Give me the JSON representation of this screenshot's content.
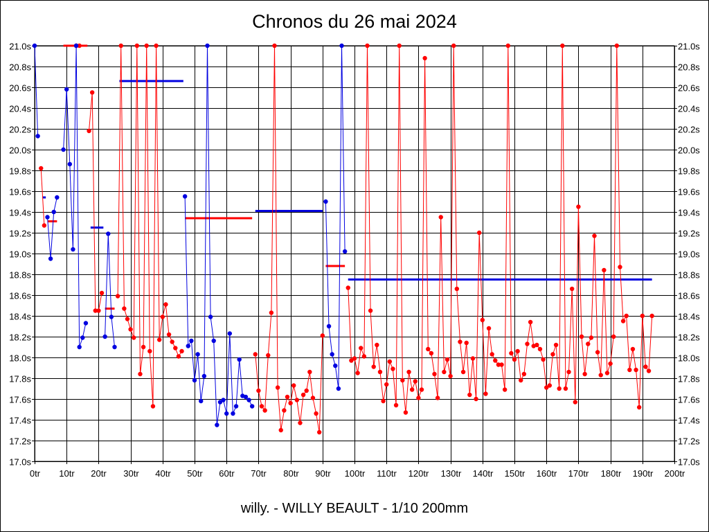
{
  "colors": {
    "series_blue": "#0000e0",
    "series_red": "#ff0000",
    "grid": "#000000"
  },
  "chart_data": {
    "type": "line",
    "title": "Chronos du 26 mai 2024",
    "subtitle": "willy. - WILLY BEAULT - 1/10 200mm",
    "xlabel": "",
    "ylabel": "",
    "xlim": [
      0,
      200
    ],
    "ylim": [
      17.0,
      21.0
    ],
    "x_ticks": [
      0,
      10,
      20,
      30,
      40,
      50,
      60,
      70,
      80,
      90,
      100,
      110,
      120,
      130,
      140,
      150,
      160,
      170,
      180,
      190,
      200
    ],
    "x_tick_labels": [
      "0tr",
      "10tr",
      "20tr",
      "30tr",
      "40tr",
      "50tr",
      "60tr",
      "70tr",
      "80tr",
      "90tr",
      "100tr",
      "110tr",
      "120tr",
      "130tr",
      "140tr",
      "150tr",
      "160tr",
      "170tr",
      "180tr",
      "190tr",
      "200tr"
    ],
    "y_ticks": [
      17.0,
      17.2,
      17.4,
      17.6,
      17.8,
      18.0,
      18.2,
      18.4,
      18.6,
      18.8,
      19.0,
      19.2,
      19.4,
      19.6,
      19.8,
      20.0,
      20.2,
      20.4,
      20.6,
      20.8,
      21.0
    ],
    "y_tick_labels": [
      "17.0s",
      "17.2s",
      "17.4s",
      "17.6s",
      "17.8s",
      "18.0s",
      "18.2s",
      "18.4s",
      "18.6s",
      "18.8s",
      "19.0s",
      "19.2s",
      "19.4s",
      "19.6s",
      "19.8s",
      "20.0s",
      "20.2s",
      "20.4s",
      "20.6s",
      "20.8s",
      "21.0s"
    ],
    "grid": true,
    "series": [
      {
        "name": "s1",
        "color": "blue",
        "x": [
          0,
          1
        ],
        "y": [
          21.0,
          20.13
        ],
        "avg": null
      },
      {
        "name": "s2",
        "color": "red",
        "x": [
          2,
          3
        ],
        "y": [
          19.82,
          19.27
        ],
        "avg": {
          "x0": 2.5,
          "x1": 3.5,
          "y": 19.54,
          "color": "blue"
        }
      },
      {
        "name": "s3",
        "color": "blue",
        "x": [
          4,
          5,
          6,
          7
        ],
        "y": [
          19.35,
          18.95,
          19.4,
          19.54
        ],
        "avg": {
          "x0": 4,
          "x1": 7,
          "y": 19.31,
          "color": "red"
        }
      },
      {
        "name": "s4",
        "color": "blue",
        "x": [
          9,
          10,
          11,
          12,
          13
        ],
        "y": [
          20.0,
          20.58,
          19.86,
          19.04,
          21.0
        ],
        "avg": {
          "x0": 9,
          "x1": 16.5,
          "y": 21.0,
          "color": "red"
        }
      },
      {
        "name": "s5",
        "color": "red",
        "x": [
          13,
          14
        ],
        "y": [
          21.0,
          21.0
        ],
        "avg": null
      },
      {
        "name": "s6",
        "color": "blue",
        "x": [
          13,
          14,
          15,
          16
        ],
        "y": [
          21.0,
          18.1,
          18.19,
          18.33
        ],
        "avg": null
      },
      {
        "name": "s7",
        "color": "red",
        "x": [
          17,
          18,
          19,
          20,
          21
        ],
        "y": [
          20.18,
          20.55,
          18.45,
          18.45,
          18.62
        ],
        "avg": {
          "x0": 17.5,
          "x1": 21.5,
          "y": 19.25,
          "color": "blue"
        }
      },
      {
        "name": "s8",
        "color": "blue",
        "x": [
          22,
          23,
          24,
          25
        ],
        "y": [
          18.2,
          19.19,
          18.39,
          18.1
        ],
        "avg": {
          "x0": 22,
          "x1": 25,
          "y": 18.47,
          "color": "red"
        }
      },
      {
        "name": "s9",
        "color": "red",
        "x": [
          26,
          27,
          28,
          29,
          30,
          31,
          32,
          33,
          34,
          35,
          36,
          37,
          38,
          39,
          40,
          41,
          42,
          43,
          44,
          45,
          46
        ],
        "y": [
          18.59,
          21.0,
          18.47,
          18.37,
          18.27,
          18.19,
          21.0,
          17.84,
          18.1,
          21.0,
          18.06,
          17.53,
          21.0,
          18.17,
          18.39,
          18.51,
          18.22,
          18.15,
          18.09,
          18.01,
          18.06
        ],
        "avg": {
          "x0": 26.5,
          "x1": 46.5,
          "y": 20.66,
          "color": "blue"
        }
      },
      {
        "name": "s10",
        "color": "blue",
        "x": [
          47,
          48,
          49,
          50,
          51,
          52,
          53,
          54,
          55,
          56,
          57,
          58,
          59,
          60,
          61,
          62,
          63,
          64,
          65,
          66,
          67,
          68
        ],
        "y": [
          19.55,
          18.11,
          18.16,
          17.78,
          18.03,
          17.58,
          17.82,
          21.0,
          18.39,
          18.16,
          17.35,
          17.57,
          17.59,
          17.46,
          18.23,
          17.46,
          17.53,
          17.98,
          17.63,
          17.62,
          17.59,
          17.53
        ],
        "avg": {
          "x0": 47,
          "x1": 68,
          "y": 19.34,
          "color": "red"
        }
      },
      {
        "name": "s11",
        "color": "red",
        "x": [
          69,
          70,
          71,
          72,
          73,
          74,
          75,
          76,
          77,
          78,
          79,
          80,
          81,
          82,
          83,
          84,
          85,
          86,
          87,
          88,
          89,
          90
        ],
        "y": [
          18.03,
          17.68,
          17.53,
          17.49,
          18.02,
          18.43,
          21.0,
          17.71,
          17.3,
          17.49,
          17.62,
          17.56,
          17.73,
          17.59,
          17.37,
          17.64,
          17.68,
          17.86,
          17.61,
          17.46,
          17.28,
          18.21
        ],
        "avg": {
          "x0": 69,
          "x1": 90,
          "y": 19.41,
          "color": "blue"
        }
      },
      {
        "name": "s12",
        "color": "blue",
        "x": [
          91,
          92,
          93,
          94,
          95,
          96,
          97
        ],
        "y": [
          19.5,
          18.3,
          18.03,
          17.92,
          17.7,
          21.0,
          19.02
        ],
        "avg": {
          "x0": 91,
          "x1": 97,
          "y": 18.88,
          "color": "red"
        }
      },
      {
        "name": "s13",
        "color": "red",
        "x": [
          98,
          99,
          100,
          101,
          102,
          103,
          104,
          105,
          106,
          107,
          108,
          109,
          110,
          111,
          112,
          113,
          114,
          115,
          116,
          117,
          118,
          119,
          120,
          121,
          122,
          123,
          124,
          125,
          126,
          127,
          128,
          129,
          130,
          131,
          132,
          133,
          134,
          135,
          136,
          137,
          138,
          139,
          140,
          141,
          142,
          143,
          144,
          145,
          146,
          147,
          148,
          149,
          150,
          151,
          152,
          153,
          154,
          155,
          156,
          157,
          158,
          159,
          160,
          161,
          162,
          163,
          164,
          165,
          166,
          167,
          168,
          169,
          170,
          171,
          172,
          173,
          174,
          175,
          176,
          177,
          178,
          179,
          180,
          181,
          182,
          183,
          184,
          185,
          186,
          187,
          188,
          189,
          190,
          191,
          192,
          193
        ],
        "y": [
          18.67,
          17.97,
          17.99,
          17.85,
          18.09,
          18.01,
          21.0,
          18.45,
          17.91,
          18.12,
          17.86,
          17.58,
          17.74,
          17.96,
          17.89,
          17.54,
          21.0,
          17.78,
          17.47,
          17.86,
          17.69,
          17.77,
          17.61,
          17.69,
          20.88,
          18.08,
          18.04,
          17.84,
          17.61,
          19.35,
          17.86,
          17.98,
          17.82,
          21.0,
          18.66,
          18.15,
          17.86,
          18.14,
          17.64,
          17.99,
          17.6,
          19.2,
          18.36,
          17.65,
          18.28,
          18.03,
          17.97,
          17.93,
          17.93,
          17.69,
          21.0,
          18.04,
          17.98,
          18.06,
          17.78,
          17.84,
          18.13,
          18.34,
          18.11,
          18.12,
          18.08,
          17.98,
          17.71,
          17.73,
          18.03,
          18.12,
          17.7,
          21.0,
          17.7,
          17.86,
          18.66,
          17.57,
          19.45,
          18.2,
          17.84,
          18.13,
          18.19,
          19.17,
          18.05,
          17.83,
          18.84,
          17.85,
          17.94,
          18.2,
          21.0,
          18.87,
          18.35,
          18.4,
          17.88,
          18.08,
          17.88,
          17.52,
          18.4,
          17.91,
          17.87,
          18.4
        ],
        "avg": {
          "x0": 98,
          "x1": 193,
          "y": 18.75,
          "color": "blue"
        }
      }
    ]
  }
}
